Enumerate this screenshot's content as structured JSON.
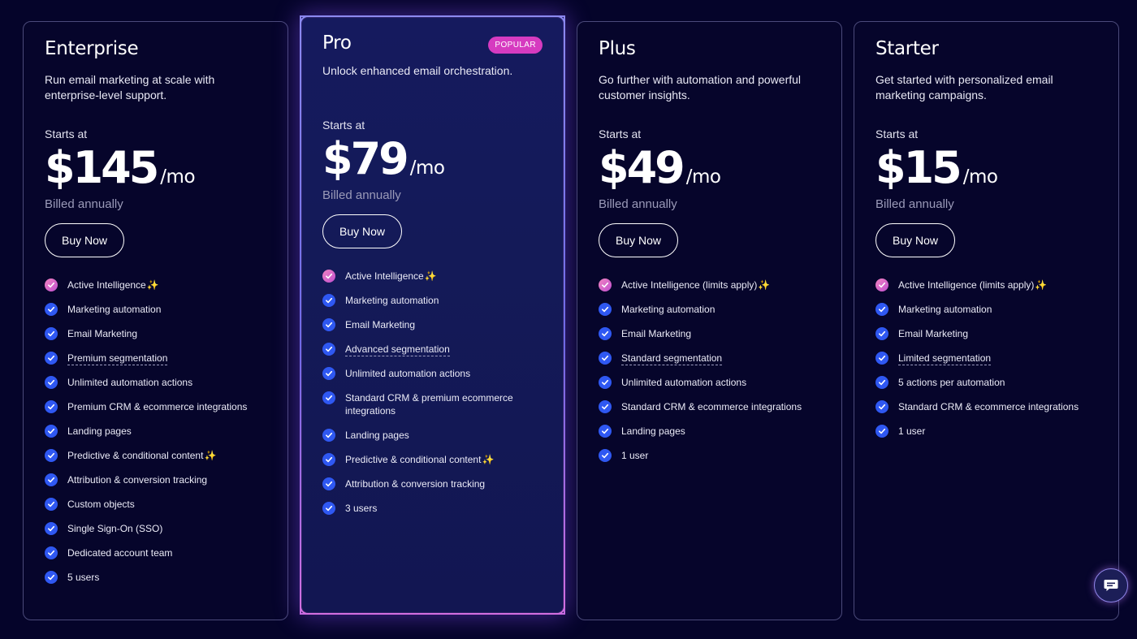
{
  "plans": [
    {
      "name": "Enterprise",
      "description": "Run email marketing at scale with enterprise-level support.",
      "starts_at": "Starts at",
      "price": "$145",
      "period": "/mo",
      "billing": "Billed annually",
      "cta": "Buy Now",
      "features": [
        {
          "text": "Active Intelligence",
          "sparkle": "✨",
          "ai": true,
          "underline": false
        },
        {
          "text": "Marketing automation",
          "sparkle": "",
          "ai": false,
          "underline": false
        },
        {
          "text": "Email Marketing",
          "sparkle": "",
          "ai": false,
          "underline": false
        },
        {
          "text": "Premium segmentation",
          "sparkle": "",
          "ai": false,
          "underline": true
        },
        {
          "text": "Unlimited automation actions",
          "sparkle": "",
          "ai": false,
          "underline": false
        },
        {
          "text": "Premium CRM & ecommerce integrations",
          "sparkle": "",
          "ai": false,
          "underline": false
        },
        {
          "text": "Landing pages",
          "sparkle": "",
          "ai": false,
          "underline": false
        },
        {
          "text": "Predictive & conditional content",
          "sparkle": "✨",
          "ai": false,
          "underline": false
        },
        {
          "text": "Attribution & conversion tracking",
          "sparkle": "",
          "ai": false,
          "underline": false
        },
        {
          "text": "Custom objects",
          "sparkle": "",
          "ai": false,
          "underline": false
        },
        {
          "text": "Single Sign-On (SSO)",
          "sparkle": "",
          "ai": false,
          "underline": false
        },
        {
          "text": "Dedicated account team",
          "sparkle": "",
          "ai": false,
          "underline": false
        },
        {
          "text": "5 users",
          "sparkle": "",
          "ai": false,
          "underline": false
        }
      ]
    },
    {
      "name": "Pro",
      "badge": "POPULAR",
      "description": "Unlock enhanced email orchestration.",
      "starts_at": "Starts at",
      "price": "$79",
      "period": "/mo",
      "billing": "Billed annually",
      "cta": "Buy Now",
      "features": [
        {
          "text": "Active Intelligence",
          "sparkle": "✨",
          "ai": true,
          "underline": false
        },
        {
          "text": "Marketing automation",
          "sparkle": "",
          "ai": false,
          "underline": false
        },
        {
          "text": "Email Marketing",
          "sparkle": "",
          "ai": false,
          "underline": false
        },
        {
          "text": "Advanced segmentation",
          "sparkle": "",
          "ai": false,
          "underline": true
        },
        {
          "text": "Unlimited automation actions",
          "sparkle": "",
          "ai": false,
          "underline": false
        },
        {
          "text": "Standard CRM & premium ecommerce integrations",
          "sparkle": "",
          "ai": false,
          "underline": false
        },
        {
          "text": "Landing pages",
          "sparkle": "",
          "ai": false,
          "underline": false
        },
        {
          "text": "Predictive & conditional content",
          "sparkle": "✨",
          "ai": false,
          "underline": false
        },
        {
          "text": "Attribution & conversion tracking",
          "sparkle": "",
          "ai": false,
          "underline": false
        },
        {
          "text": "3 users",
          "sparkle": "",
          "ai": false,
          "underline": false
        }
      ]
    },
    {
      "name": "Plus",
      "description": "Go further with automation and powerful customer insights.",
      "starts_at": "Starts at",
      "price": "$49",
      "period": "/mo",
      "billing": "Billed annually",
      "cta": "Buy Now",
      "features": [
        {
          "text": "Active Intelligence (limits apply)",
          "sparkle": "✨",
          "ai": true,
          "underline": false
        },
        {
          "text": "Marketing automation",
          "sparkle": "",
          "ai": false,
          "underline": false
        },
        {
          "text": "Email Marketing",
          "sparkle": "",
          "ai": false,
          "underline": false
        },
        {
          "text": "Standard segmentation",
          "sparkle": "",
          "ai": false,
          "underline": true
        },
        {
          "text": "Unlimited automation actions",
          "sparkle": "",
          "ai": false,
          "underline": false
        },
        {
          "text": "Standard CRM & ecommerce integrations",
          "sparkle": "",
          "ai": false,
          "underline": false
        },
        {
          "text": "Landing pages",
          "sparkle": "",
          "ai": false,
          "underline": false
        },
        {
          "text": "1 user",
          "sparkle": "",
          "ai": false,
          "underline": false
        }
      ]
    },
    {
      "name": "Starter",
      "description": "Get started with personalized email marketing campaigns.",
      "starts_at": "Starts at",
      "price": "$15",
      "period": "/mo",
      "billing": "Billed annually",
      "cta": "Buy Now",
      "features": [
        {
          "text": "Active Intelligence (limits apply)",
          "sparkle": "✨",
          "ai": true,
          "underline": false
        },
        {
          "text": "Marketing automation",
          "sparkle": "",
          "ai": false,
          "underline": false
        },
        {
          "text": "Email Marketing",
          "sparkle": "",
          "ai": false,
          "underline": false
        },
        {
          "text": "Limited segmentation",
          "sparkle": "",
          "ai": false,
          "underline": true
        },
        {
          "text": "5 actions per automation",
          "sparkle": "",
          "ai": false,
          "underline": false
        },
        {
          "text": "Standard CRM & ecommerce integrations",
          "sparkle": "",
          "ai": false,
          "underline": false
        },
        {
          "text": "1 user",
          "sparkle": "",
          "ai": false,
          "underline": false
        }
      ]
    }
  ],
  "chat": {
    "icon": "chat-bubble-icon"
  },
  "colors": {
    "background": "#05042a",
    "check": "#2f58f2",
    "badge": "#d63bc0",
    "ai_check": "#e06ac8"
  }
}
